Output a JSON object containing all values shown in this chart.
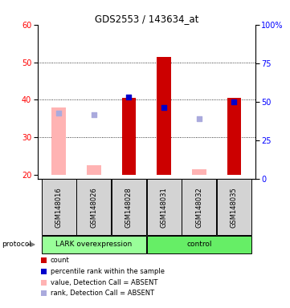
{
  "title": "GDS2553 / 143634_at",
  "samples": [
    "GSM148016",
    "GSM148026",
    "GSM148028",
    "GSM148031",
    "GSM148032",
    "GSM148035"
  ],
  "ylim_left": [
    19,
    60
  ],
  "ylim_right": [
    0,
    100
  ],
  "yticks_left": [
    20,
    30,
    40,
    50,
    60
  ],
  "yticks_right": [
    0,
    25,
    50,
    75,
    100
  ],
  "red_bars": [
    null,
    null,
    40.5,
    51.5,
    null,
    40.5
  ],
  "red_bar_bottom": [
    null,
    null,
    20,
    20,
    null,
    20
  ],
  "pink_bars": [
    38.0,
    22.5,
    null,
    null,
    21.5,
    null
  ],
  "pink_bar_bottom": [
    20,
    20,
    null,
    null,
    20,
    null
  ],
  "blue_squares": [
    null,
    null,
    40.8,
    38.0,
    null,
    39.5
  ],
  "blue_sq_absent": [
    36.5,
    36.0,
    null,
    null,
    35.0,
    null
  ],
  "bar_color_red": "#cc0000",
  "bar_color_pink": "#ffb3b3",
  "sq_color_blue": "#0000cc",
  "sq_color_lblue": "#aaaadd",
  "bar_width": 0.4,
  "sq_size": 25,
  "legend_items": [
    {
      "color": "#cc0000",
      "label": "count"
    },
    {
      "color": "#0000cc",
      "label": "percentile rank within the sample"
    },
    {
      "color": "#ffb3b3",
      "label": "value, Detection Call = ABSENT"
    },
    {
      "color": "#aaaadd",
      "label": "rank, Detection Call = ABSENT"
    }
  ],
  "lark_color": "#99ff99",
  "ctrl_color": "#66ee66",
  "gray_color": "#d3d3d3"
}
